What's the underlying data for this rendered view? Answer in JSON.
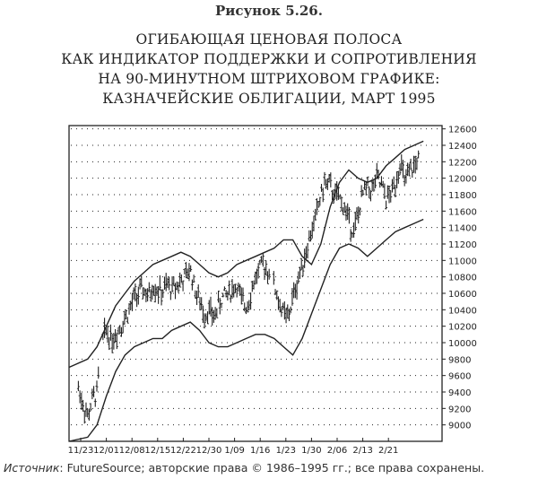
{
  "figure_label": "Рисунок 5.26.",
  "title_lines": [
    "ОГИБАЮЩАЯ ЦЕНОВАЯ ПОЛОСА",
    "КАК ИНДИКАТОР ПОДДЕРЖКИ И СОПРОТИВЛЕНИЯ",
    "НА 90-МИНУТНОМ ШТРИХОВОМ ГРАФИКЕ:",
    "КАЗНАЧЕЙСКИЕ ОБЛИГАЦИИ, МАРТ 1995"
  ],
  "source": {
    "prefix": "Источник",
    "text": ": FutureSource; авторские права © 1986–1995 гг.; все права сохранены."
  },
  "colors": {
    "ink": "#222222",
    "background": "#ffffff"
  },
  "chart_data": {
    "type": "line",
    "subtype": "price bars with envelope bands",
    "grid": "dotted horizontal",
    "y_axis_side": "right",
    "ylim": [
      8800,
      12640
    ],
    "y_ticks": [
      9000,
      9200,
      9400,
      9600,
      9800,
      10000,
      10200,
      10400,
      10600,
      10800,
      11000,
      11200,
      11400,
      11600,
      11800,
      12000,
      12200,
      12400,
      12600
    ],
    "x_ticks": [
      "11/23",
      "12/01",
      "12/08",
      "12/15",
      "12/22",
      "12/30",
      "1/09",
      "1/16",
      "1/23",
      "1/30",
      "2/06",
      "2/13",
      "2/21"
    ],
    "x_tick_positions": [
      0.5,
      6,
      11.5,
      17,
      22.5,
      28,
      33.5,
      39,
      44.5,
      50,
      55.5,
      61,
      66.5
    ],
    "x_range": [
      -2,
      78
    ],
    "price_anchors": [
      [
        0,
        9450
      ],
      [
        1,
        9250
      ],
      [
        2,
        9100
      ],
      [
        3,
        9300
      ],
      [
        4,
        9400
      ],
      [
        5,
        10000
      ],
      [
        6,
        10150
      ],
      [
        7,
        10050
      ],
      [
        8,
        10100
      ],
      [
        9,
        10200
      ],
      [
        10,
        10300
      ],
      [
        11,
        10400
      ],
      [
        12,
        10550
      ],
      [
        13,
        10600
      ],
      [
        14,
        10650
      ],
      [
        15,
        10550
      ],
      [
        16,
        10700
      ],
      [
        17,
        10650
      ],
      [
        18,
        10600
      ],
      [
        19,
        10700
      ],
      [
        20,
        10650
      ],
      [
        21,
        10700
      ],
      [
        22,
        10750
      ],
      [
        23,
        10800
      ],
      [
        24,
        10900
      ],
      [
        25,
        10650
      ],
      [
        26,
        10500
      ],
      [
        27,
        10350
      ],
      [
        28,
        10400
      ],
      [
        29,
        10300
      ],
      [
        30,
        10450
      ],
      [
        31,
        10550
      ],
      [
        32,
        10600
      ],
      [
        33,
        10650
      ],
      [
        34,
        10700
      ],
      [
        35,
        10500
      ],
      [
        36,
        10450
      ],
      [
        37,
        10600
      ],
      [
        38,
        10800
      ],
      [
        39,
        10900
      ],
      [
        40,
        10950
      ],
      [
        41,
        10850
      ],
      [
        42,
        10700
      ],
      [
        43,
        10500
      ],
      [
        44,
        10350
      ],
      [
        45,
        10300
      ],
      [
        46,
        10550
      ],
      [
        47,
        10750
      ],
      [
        48,
        10950
      ],
      [
        49,
        11150
      ],
      [
        50,
        11350
      ],
      [
        51,
        11550
      ],
      [
        52,
        11800
      ],
      [
        53,
        11950
      ],
      [
        54,
        11900
      ],
      [
        55,
        11800
      ],
      [
        56,
        11750
      ],
      [
        57,
        11650
      ],
      [
        58,
        11500
      ],
      [
        59,
        11350
      ],
      [
        60,
        11550
      ],
      [
        61,
        11800
      ],
      [
        62,
        11900
      ],
      [
        63,
        11850
      ],
      [
        64,
        12000
      ],
      [
        65,
        11900
      ],
      [
        66,
        11750
      ],
      [
        67,
        11800
      ],
      [
        68,
        11950
      ],
      [
        69,
        12200
      ],
      [
        70,
        11950
      ],
      [
        71,
        12050
      ],
      [
        72,
        12150
      ],
      [
        73,
        12250
      ]
    ],
    "upper_band": [
      [
        -2,
        9700
      ],
      [
        2,
        9800
      ],
      [
        4,
        9950
      ],
      [
        6,
        10200
      ],
      [
        8,
        10450
      ],
      [
        10,
        10600
      ],
      [
        12,
        10750
      ],
      [
        14,
        10850
      ],
      [
        16,
        10950
      ],
      [
        18,
        11000
      ],
      [
        20,
        11050
      ],
      [
        22,
        11100
      ],
      [
        24,
        11050
      ],
      [
        26,
        10950
      ],
      [
        28,
        10850
      ],
      [
        30,
        10800
      ],
      [
        32,
        10850
      ],
      [
        34,
        10950
      ],
      [
        36,
        11000
      ],
      [
        38,
        11050
      ],
      [
        40,
        11100
      ],
      [
        42,
        11150
      ],
      [
        44,
        11250
      ],
      [
        46,
        11250
      ],
      [
        48,
        11050
      ],
      [
        50,
        10950
      ],
      [
        52,
        11200
      ],
      [
        54,
        11650
      ],
      [
        56,
        11950
      ],
      [
        58,
        12100
      ],
      [
        60,
        12000
      ],
      [
        62,
        11950
      ],
      [
        64,
        12000
      ],
      [
        66,
        12150
      ],
      [
        68,
        12250
      ],
      [
        70,
        12350
      ],
      [
        72,
        12400
      ],
      [
        74,
        12450
      ]
    ],
    "lower_band": [
      [
        -2,
        8800
      ],
      [
        2,
        8850
      ],
      [
        4,
        9000
      ],
      [
        6,
        9350
      ],
      [
        8,
        9650
      ],
      [
        10,
        9850
      ],
      [
        12,
        9950
      ],
      [
        14,
        10000
      ],
      [
        16,
        10050
      ],
      [
        18,
        10050
      ],
      [
        20,
        10150
      ],
      [
        22,
        10200
      ],
      [
        24,
        10250
      ],
      [
        26,
        10150
      ],
      [
        28,
        10000
      ],
      [
        30,
        9950
      ],
      [
        32,
        9950
      ],
      [
        34,
        10000
      ],
      [
        36,
        10050
      ],
      [
        38,
        10100
      ],
      [
        40,
        10100
      ],
      [
        42,
        10050
      ],
      [
        44,
        9950
      ],
      [
        46,
        9850
      ],
      [
        48,
        10050
      ],
      [
        50,
        10350
      ],
      [
        52,
        10650
      ],
      [
        54,
        10950
      ],
      [
        56,
        11150
      ],
      [
        58,
        11200
      ],
      [
        60,
        11150
      ],
      [
        62,
        11050
      ],
      [
        64,
        11150
      ],
      [
        66,
        11250
      ],
      [
        68,
        11350
      ],
      [
        70,
        11400
      ],
      [
        72,
        11450
      ],
      [
        74,
        11500
      ]
    ]
  }
}
